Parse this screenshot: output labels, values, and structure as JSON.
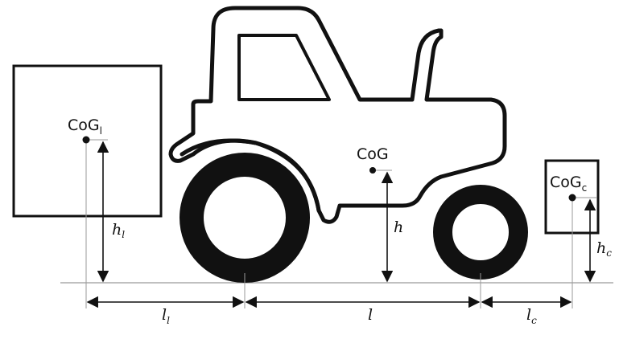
{
  "labels": {
    "cog_base": "CoG",
    "cog_front_sub": "l",
    "cog_center": "CoG",
    "cog_rear_sub": "c",
    "h_front": "h",
    "h_front_sub": "l",
    "h_center": "h",
    "h_rear": "h",
    "h_rear_sub": "c",
    "l_front": "l",
    "l_front_sub": "l",
    "l_center": "l",
    "l_rear": "l",
    "l_rear_sub": "c"
  },
  "colors": {
    "ink": "#111111",
    "guide": "#9a9a9a",
    "background": "#ffffff"
  }
}
